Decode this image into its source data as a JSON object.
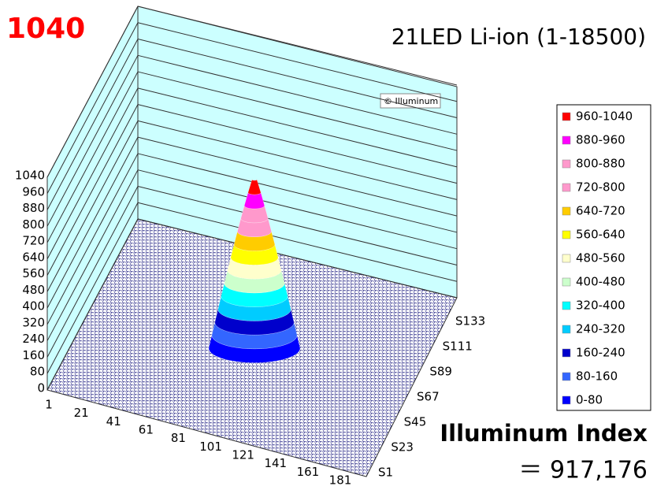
{
  "chart_data": {
    "type": "surface",
    "corner_label": "1040",
    "title": "21LED Li-ion (1-18500)",
    "watermark": "© Illuminum",
    "index_label": "Illuminum Index",
    "index_value": "＝ 917,176",
    "zlim": [
      0,
      1040
    ],
    "zticks": [
      0,
      80,
      160,
      240,
      320,
      400,
      480,
      560,
      640,
      720,
      800,
      880,
      960,
      1040
    ],
    "categories": [
      "1",
      "21",
      "41",
      "61",
      "81",
      "101",
      "121",
      "141",
      "161",
      "181"
    ],
    "depth_categories": [
      "S1",
      "S23",
      "S45",
      "S67",
      "S89",
      "S111",
      "S133"
    ],
    "legend": "right",
    "series": [
      {
        "name": "960-1040",
        "color": "#ff0000"
      },
      {
        "name": "880-960",
        "color": "#ff00ff"
      },
      {
        "name": "800-880",
        "color": "#ff99cc"
      },
      {
        "name": "720-800",
        "color": "#ff99cc"
      },
      {
        "name": "640-720",
        "color": "#ffcc00"
      },
      {
        "name": "560-640",
        "color": "#ffff00"
      },
      {
        "name": "480-560",
        "color": "#ffffcc"
      },
      {
        "name": "400-480",
        "color": "#ccffcc"
      },
      {
        "name": "320-400",
        "color": "#00ffff"
      },
      {
        "name": "240-320",
        "color": "#00ccff"
      },
      {
        "name": "160-240",
        "color": "#0000cc"
      },
      {
        "name": "80-160",
        "color": "#3366ff"
      },
      {
        "name": "0-80",
        "color": "#0000ff"
      }
    ]
  }
}
